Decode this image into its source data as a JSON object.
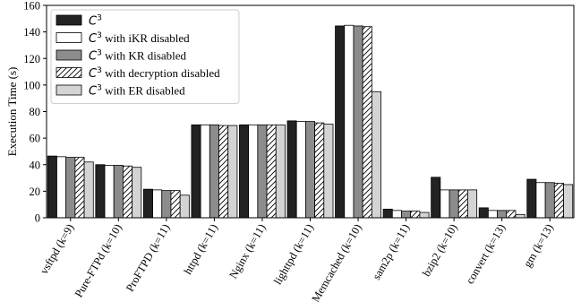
{
  "chart_data": {
    "type": "bar",
    "title": "",
    "xlabel": "",
    "ylabel": "Execution Time (s)",
    "ylim": [
      0,
      160
    ],
    "yticks": [
      0,
      20,
      40,
      60,
      80,
      100,
      120,
      140,
      160
    ],
    "grid": false,
    "legend_position": "top-left",
    "categories": [
      "vsftpd (k=9)",
      "Pure-FTPd (k=10)",
      "ProFTPD (k=11)",
      "httpd (k=11)",
      "Nginx (k=11)",
      "lighttpd (k=11)",
      "Memcached (k=10)",
      "sam2p (k=11)",
      "bzip2 (k=10)",
      "convert (k=13)",
      "gm (k=13)"
    ],
    "series": [
      {
        "name": "C3",
        "legend_base": "C",
        "legend_sup": "3",
        "legend_suffix": "",
        "fill": "#222222",
        "pattern": "solid",
        "values": [
          46.5,
          40,
          21.5,
          70,
          70,
          73,
          144.5,
          6.5,
          30.5,
          7.5,
          29
        ]
      },
      {
        "name": "C3 with iKR disabled",
        "legend_base": "C",
        "legend_sup": "3",
        "legend_suffix": " with iKR disabled",
        "fill": "#ffffff",
        "pattern": "solid",
        "values": [
          46,
          39.5,
          21,
          70,
          70,
          72.5,
          145,
          5.5,
          21,
          5.5,
          26.5
        ]
      },
      {
        "name": "C3 with KR disabled",
        "legend_base": "C",
        "legend_sup": "3",
        "legend_suffix": " with KR disabled",
        "fill": "#8c8c8c",
        "pattern": "solid",
        "values": [
          45.5,
          39.5,
          20.5,
          70,
          70,
          72.5,
          144.5,
          5,
          21,
          5.5,
          26.5
        ]
      },
      {
        "name": "C3 with decryption disabled",
        "legend_base": "C",
        "legend_sup": "3",
        "legend_suffix": " with decryption disabled",
        "fill": "#ffffff",
        "pattern": "hatch",
        "values": [
          45.5,
          39,
          20.5,
          69.5,
          70,
          71.5,
          144,
          5,
          21,
          5.5,
          26
        ]
      },
      {
        "name": "C3 with ER disabled",
        "legend_base": "C",
        "legend_sup": "3",
        "legend_suffix": " with ER disabled",
        "fill": "#d4d4d4",
        "pattern": "solid",
        "values": [
          42,
          38,
          17,
          69.5,
          70,
          70.5,
          95,
          4,
          21,
          2.5,
          25
        ]
      }
    ]
  }
}
